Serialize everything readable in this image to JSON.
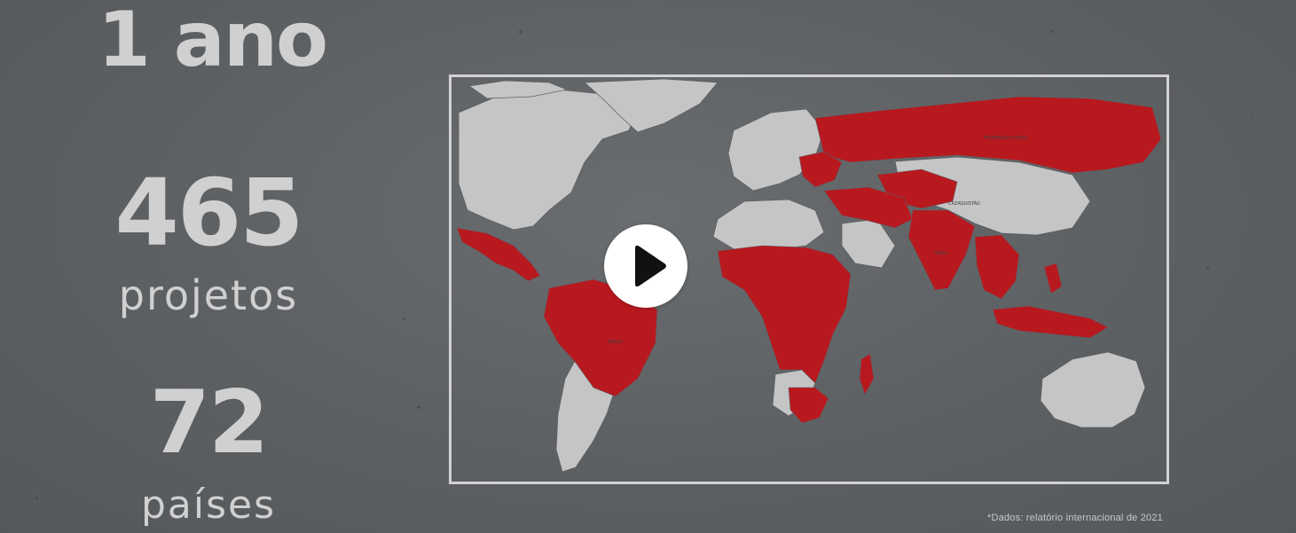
{
  "stats": {
    "year": "1 ano",
    "projects_number": "465",
    "projects_label": "projetos",
    "countries_number": "72",
    "countries_label": "países"
  },
  "map": {
    "highlight_color": "#b8191f",
    "land_color": "#c5c5c5",
    "frame_color": "#d2d2d2",
    "map_labels": {
      "russia": "FEDERAÇÃO RUSSA",
      "kazakhstan": "CAZAQUISTÃO",
      "brazil": "BRASIL",
      "india": "ÍNDIA"
    }
  },
  "player": {
    "play_icon": "play-icon"
  },
  "footnote": "*Dados: relatório internacional de 2021"
}
